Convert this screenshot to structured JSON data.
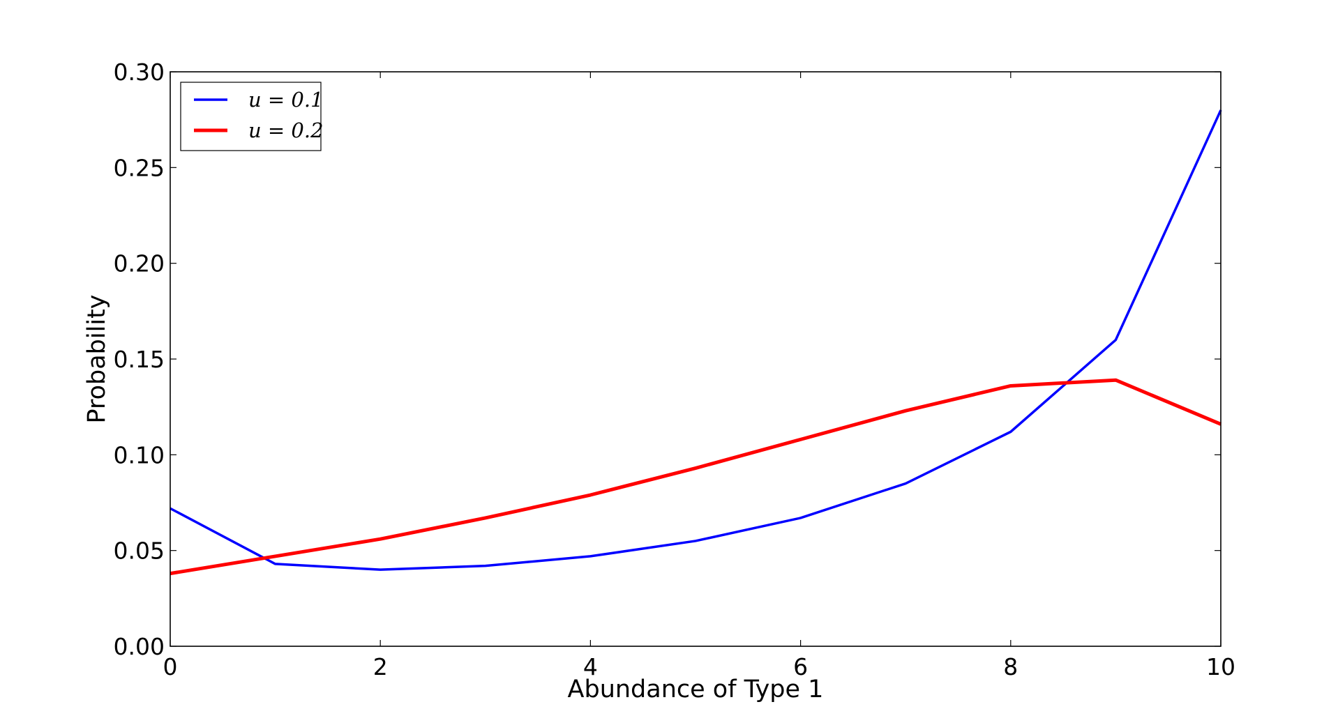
{
  "chart_data": {
    "type": "line",
    "title": "",
    "xlabel": "Abundance of Type 1",
    "ylabel": "Probability",
    "xlim": [
      0,
      10
    ],
    "ylim": [
      0,
      0.3
    ],
    "xticks": [
      0,
      2,
      4,
      6,
      8,
      10
    ],
    "xtick_labels": [
      "0",
      "2",
      "4",
      "6",
      "8",
      "10"
    ],
    "yticks": [
      0,
      0.05,
      0.1,
      0.15,
      0.2,
      0.25,
      0.3
    ],
    "ytick_labels": [
      "0.00",
      "0.05",
      "0.10",
      "0.15",
      "0.20",
      "0.25",
      "0.30"
    ],
    "grid": false,
    "legend_position": "top-left",
    "x": [
      0,
      1,
      2,
      3,
      4,
      5,
      6,
      7,
      8,
      9,
      10
    ],
    "series": [
      {
        "name": "u = 0.1",
        "color": "#0000ff",
        "values": [
          0.072,
          0.043,
          0.04,
          0.042,
          0.047,
          0.055,
          0.067,
          0.085,
          0.112,
          0.16,
          0.28
        ]
      },
      {
        "name": "u = 0.2",
        "color": "#ff0000",
        "values": [
          0.038,
          0.047,
          0.056,
          0.067,
          0.079,
          0.093,
          0.108,
          0.123,
          0.136,
          0.139,
          0.116
        ]
      }
    ]
  }
}
